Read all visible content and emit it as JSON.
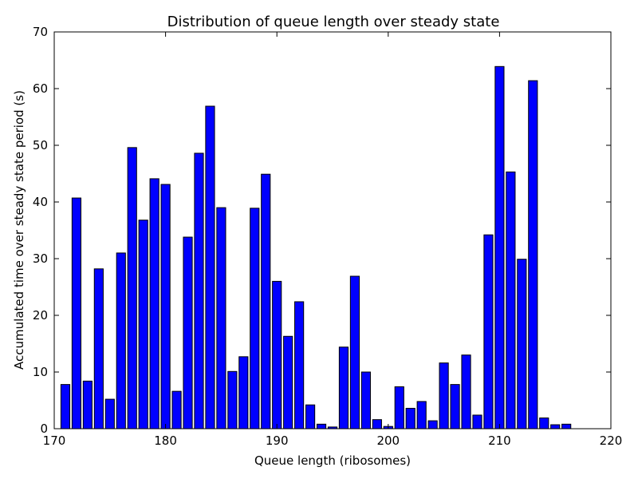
{
  "chart_data": {
    "type": "bar",
    "title": "Distribution of queue length over steady state",
    "xlabel": "Queue length (ribosomes)",
    "ylabel": "Accumulated time over steady state period (s)",
    "xlim": [
      170,
      220
    ],
    "ylim": [
      0,
      70
    ],
    "xticks": [
      170,
      180,
      190,
      200,
      210,
      220
    ],
    "yticks": [
      0,
      10,
      20,
      30,
      40,
      50,
      60,
      70
    ],
    "grid": false,
    "bar_color": "#0000ff",
    "bar_edge_color": "#000000",
    "bar_width": 0.8,
    "x": [
      171,
      172,
      173,
      174,
      175,
      176,
      177,
      178,
      179,
      180,
      181,
      182,
      183,
      184,
      185,
      186,
      187,
      188,
      189,
      190,
      191,
      192,
      193,
      194,
      195,
      196,
      197,
      198,
      199,
      200,
      201,
      202,
      203,
      204,
      205,
      206,
      207,
      208,
      209,
      210,
      211,
      212,
      213,
      214,
      215,
      216
    ],
    "values": [
      7.8,
      40.7,
      8.4,
      28.2,
      5.2,
      31.0,
      49.6,
      36.8,
      44.1,
      43.1,
      6.6,
      33.8,
      48.6,
      56.9,
      39.0,
      10.1,
      12.7,
      38.9,
      44.9,
      26.0,
      16.3,
      22.4,
      4.2,
      0.8,
      0.3,
      14.4,
      26.9,
      10.0,
      1.6,
      0.4,
      7.4,
      3.6,
      4.8,
      1.4,
      11.6,
      7.8,
      13.0,
      2.4,
      34.2,
      63.9,
      45.3,
      29.9,
      61.4,
      1.9,
      0.7,
      0.8
    ]
  }
}
